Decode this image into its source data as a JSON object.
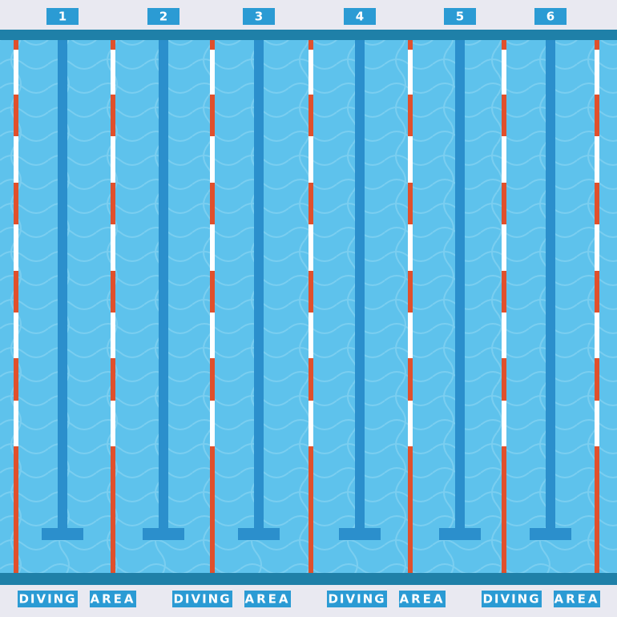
{
  "lanes": [
    "1",
    "2",
    "3",
    "4",
    "5",
    "6"
  ],
  "footer": [
    {
      "first": "DIVING",
      "second": "AREA"
    },
    {
      "first": "DIVING",
      "second": "AREA"
    },
    {
      "first": "DIVING",
      "second": "AREA"
    },
    {
      "first": "DIVING",
      "second": "AREA"
    }
  ]
}
